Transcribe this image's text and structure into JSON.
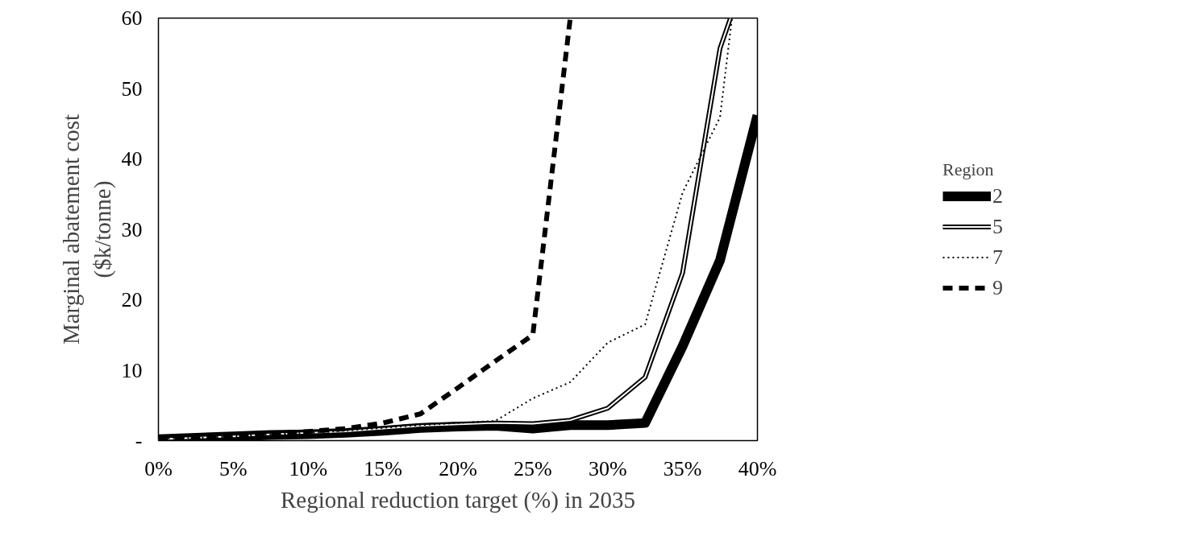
{
  "chart_data": {
    "type": "line",
    "xlabel": "Regional reduction target (%) in 2035",
    "ylabel": "Marginal abatement cost\n($k/tonne)",
    "legend_title": "Region",
    "legend": "right",
    "grid": false,
    "xlim": [
      0,
      40
    ],
    "xticks": [
      {
        "value": 0,
        "label": "0%"
      },
      {
        "value": 5,
        "label": "5%"
      },
      {
        "value": 10,
        "label": "10%"
      },
      {
        "value": 15,
        "label": "15%"
      },
      {
        "value": 20,
        "label": "20%"
      },
      {
        "value": 25,
        "label": "25%"
      },
      {
        "value": 30,
        "label": "30%"
      },
      {
        "value": 35,
        "label": "35%"
      },
      {
        "value": 40,
        "label": "40%"
      }
    ],
    "ylim": [
      0,
      60
    ],
    "yticks": [
      {
        "value": 0,
        "label": "-"
      },
      10,
      20,
      30,
      40,
      50,
      60
    ],
    "series": [
      {
        "name": "2",
        "color": "#000000",
        "line_style": "solid",
        "x": [
          0,
          2.5,
          5,
          7.5,
          10,
          12.5,
          15,
          17.5,
          20,
          22.5,
          25,
          27.5,
          30,
          32.5,
          35,
          37.5,
          40
        ],
        "values": [
          0.2,
          0.4,
          0.6,
          0.8,
          0.9,
          1.1,
          1.4,
          1.8,
          2.0,
          2.1,
          1.7,
          2.2,
          2.2,
          2.5,
          13.4,
          25.6,
          46.2
        ]
      },
      {
        "name": "5",
        "color": "#000000",
        "line_style": "solid",
        "x": [
          0,
          2.5,
          5,
          7.5,
          10,
          12.5,
          15,
          17.5,
          20,
          22.5,
          25,
          27.5,
          30,
          32.5,
          35,
          37.5,
          38.2
        ],
        "values": [
          0.2,
          0.4,
          0.6,
          0.9,
          1.1,
          1.3,
          1.7,
          2.1,
          2.3,
          2.5,
          2.4,
          2.9,
          4.6,
          9.0,
          23.8,
          55.7,
          60
        ]
      },
      {
        "name": "7",
        "color": "#000000",
        "line_style": "dotted",
        "x": [
          0,
          2.5,
          5,
          7.5,
          10,
          12.5,
          15,
          17.5,
          20,
          22.5,
          25,
          27.5,
          30,
          32.5,
          35,
          37.5,
          38.3
        ],
        "values": [
          0.3,
          0.4,
          0.6,
          0.9,
          1.1,
          1.4,
          1.8,
          2.2,
          2.5,
          2.8,
          6.0,
          8.3,
          13.9,
          16.5,
          35.2,
          45.9,
          60
        ]
      },
      {
        "name": "9",
        "color": "#000000",
        "line_style": "dashed",
        "x": [
          0,
          2.5,
          5,
          7.5,
          10,
          12.5,
          15,
          17.5,
          20,
          22.5,
          25,
          27.5
        ],
        "values": [
          0.3,
          0.5,
          0.7,
          1.0,
          1.3,
          1.7,
          2.5,
          3.8,
          7.5,
          11.3,
          15,
          60
        ]
      }
    ]
  }
}
